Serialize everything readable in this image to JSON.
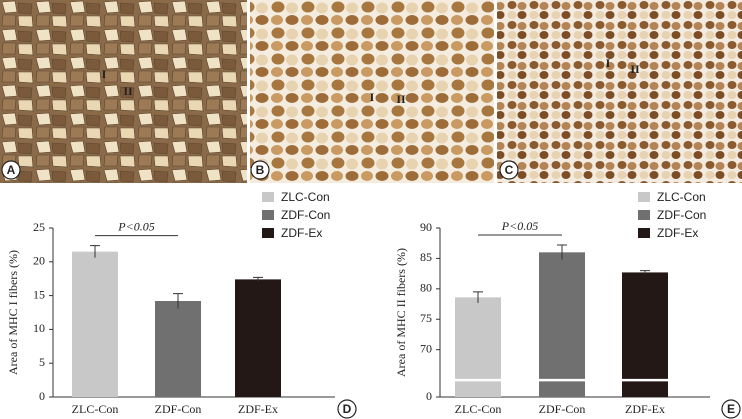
{
  "panels": [
    {
      "label": "A",
      "markers": [
        "I",
        "II"
      ]
    },
    {
      "label": "B",
      "markers": [
        "I",
        "II"
      ]
    },
    {
      "label": "C",
      "markers": [
        "I",
        "II"
      ]
    }
  ],
  "chart_data": [
    {
      "type": "bar",
      "panel_label": "D",
      "y_label": "Area of MHC I fibers (%)",
      "categories": [
        "ZLC-Con",
        "ZDF-Con",
        "ZDF-Ex"
      ],
      "values": [
        21.5,
        14.2,
        17.4
      ],
      "errors": [
        0.9,
        1.1,
        0.3
      ],
      "colors": [
        "#c8c8c8",
        "#707070",
        "#231815"
      ],
      "ylim": [
        0,
        25
      ],
      "yticks": [
        0,
        5,
        10,
        15,
        20,
        25
      ],
      "annotation": {
        "text": "P<0.05",
        "between": [
          "ZLC-Con",
          "ZDF-Con"
        ]
      },
      "legend": "top-right"
    },
    {
      "type": "bar",
      "panel_label": "E",
      "y_label": "Area of MHC II fibers (%)",
      "categories": [
        "ZLC-Con",
        "ZDF-Con",
        "ZDF-Ex"
      ],
      "values": [
        78.6,
        86.0,
        82.7
      ],
      "errors": [
        0.9,
        1.2,
        0.3
      ],
      "colors": [
        "#c8c8c8",
        "#707070",
        "#231815"
      ],
      "ylim": [
        0,
        90
      ],
      "yticks": [
        0,
        70,
        75,
        80,
        85,
        90
      ],
      "axis_break": [
        0,
        65
      ],
      "annotation": {
        "text": "P<0.05",
        "between": [
          "ZLC-Con",
          "ZDF-Con"
        ]
      },
      "legend": "top-right"
    }
  ]
}
